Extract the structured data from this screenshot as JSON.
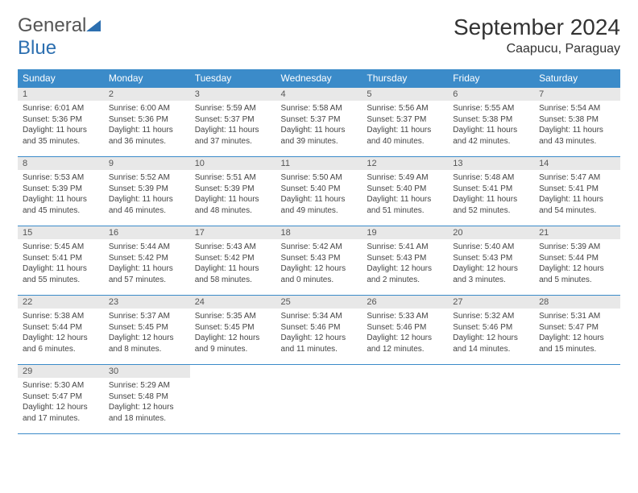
{
  "logo": {
    "word1": "General",
    "word2": "Blue"
  },
  "header": {
    "month_title": "September 2024",
    "location": "Caapucu, Paraguay"
  },
  "colors": {
    "accent": "#3b8bc9",
    "header_bg": "#3b8bc9",
    "daynum_bg": "#e8e8e8"
  },
  "weekdays": [
    "Sunday",
    "Monday",
    "Tuesday",
    "Wednesday",
    "Thursday",
    "Friday",
    "Saturday"
  ],
  "weeks": [
    [
      {
        "num": "1",
        "sunrise": "Sunrise: 6:01 AM",
        "sunset": "Sunset: 5:36 PM",
        "day1": "Daylight: 11 hours",
        "day2": "and 35 minutes."
      },
      {
        "num": "2",
        "sunrise": "Sunrise: 6:00 AM",
        "sunset": "Sunset: 5:36 PM",
        "day1": "Daylight: 11 hours",
        "day2": "and 36 minutes."
      },
      {
        "num": "3",
        "sunrise": "Sunrise: 5:59 AM",
        "sunset": "Sunset: 5:37 PM",
        "day1": "Daylight: 11 hours",
        "day2": "and 37 minutes."
      },
      {
        "num": "4",
        "sunrise": "Sunrise: 5:58 AM",
        "sunset": "Sunset: 5:37 PM",
        "day1": "Daylight: 11 hours",
        "day2": "and 39 minutes."
      },
      {
        "num": "5",
        "sunrise": "Sunrise: 5:56 AM",
        "sunset": "Sunset: 5:37 PM",
        "day1": "Daylight: 11 hours",
        "day2": "and 40 minutes."
      },
      {
        "num": "6",
        "sunrise": "Sunrise: 5:55 AM",
        "sunset": "Sunset: 5:38 PM",
        "day1": "Daylight: 11 hours",
        "day2": "and 42 minutes."
      },
      {
        "num": "7",
        "sunrise": "Sunrise: 5:54 AM",
        "sunset": "Sunset: 5:38 PM",
        "day1": "Daylight: 11 hours",
        "day2": "and 43 minutes."
      }
    ],
    [
      {
        "num": "8",
        "sunrise": "Sunrise: 5:53 AM",
        "sunset": "Sunset: 5:39 PM",
        "day1": "Daylight: 11 hours",
        "day2": "and 45 minutes."
      },
      {
        "num": "9",
        "sunrise": "Sunrise: 5:52 AM",
        "sunset": "Sunset: 5:39 PM",
        "day1": "Daylight: 11 hours",
        "day2": "and 46 minutes."
      },
      {
        "num": "10",
        "sunrise": "Sunrise: 5:51 AM",
        "sunset": "Sunset: 5:39 PM",
        "day1": "Daylight: 11 hours",
        "day2": "and 48 minutes."
      },
      {
        "num": "11",
        "sunrise": "Sunrise: 5:50 AM",
        "sunset": "Sunset: 5:40 PM",
        "day1": "Daylight: 11 hours",
        "day2": "and 49 minutes."
      },
      {
        "num": "12",
        "sunrise": "Sunrise: 5:49 AM",
        "sunset": "Sunset: 5:40 PM",
        "day1": "Daylight: 11 hours",
        "day2": "and 51 minutes."
      },
      {
        "num": "13",
        "sunrise": "Sunrise: 5:48 AM",
        "sunset": "Sunset: 5:41 PM",
        "day1": "Daylight: 11 hours",
        "day2": "and 52 minutes."
      },
      {
        "num": "14",
        "sunrise": "Sunrise: 5:47 AM",
        "sunset": "Sunset: 5:41 PM",
        "day1": "Daylight: 11 hours",
        "day2": "and 54 minutes."
      }
    ],
    [
      {
        "num": "15",
        "sunrise": "Sunrise: 5:45 AM",
        "sunset": "Sunset: 5:41 PM",
        "day1": "Daylight: 11 hours",
        "day2": "and 55 minutes."
      },
      {
        "num": "16",
        "sunrise": "Sunrise: 5:44 AM",
        "sunset": "Sunset: 5:42 PM",
        "day1": "Daylight: 11 hours",
        "day2": "and 57 minutes."
      },
      {
        "num": "17",
        "sunrise": "Sunrise: 5:43 AM",
        "sunset": "Sunset: 5:42 PM",
        "day1": "Daylight: 11 hours",
        "day2": "and 58 minutes."
      },
      {
        "num": "18",
        "sunrise": "Sunrise: 5:42 AM",
        "sunset": "Sunset: 5:43 PM",
        "day1": "Daylight: 12 hours",
        "day2": "and 0 minutes."
      },
      {
        "num": "19",
        "sunrise": "Sunrise: 5:41 AM",
        "sunset": "Sunset: 5:43 PM",
        "day1": "Daylight: 12 hours",
        "day2": "and 2 minutes."
      },
      {
        "num": "20",
        "sunrise": "Sunrise: 5:40 AM",
        "sunset": "Sunset: 5:43 PM",
        "day1": "Daylight: 12 hours",
        "day2": "and 3 minutes."
      },
      {
        "num": "21",
        "sunrise": "Sunrise: 5:39 AM",
        "sunset": "Sunset: 5:44 PM",
        "day1": "Daylight: 12 hours",
        "day2": "and 5 minutes."
      }
    ],
    [
      {
        "num": "22",
        "sunrise": "Sunrise: 5:38 AM",
        "sunset": "Sunset: 5:44 PM",
        "day1": "Daylight: 12 hours",
        "day2": "and 6 minutes."
      },
      {
        "num": "23",
        "sunrise": "Sunrise: 5:37 AM",
        "sunset": "Sunset: 5:45 PM",
        "day1": "Daylight: 12 hours",
        "day2": "and 8 minutes."
      },
      {
        "num": "24",
        "sunrise": "Sunrise: 5:35 AM",
        "sunset": "Sunset: 5:45 PM",
        "day1": "Daylight: 12 hours",
        "day2": "and 9 minutes."
      },
      {
        "num": "25",
        "sunrise": "Sunrise: 5:34 AM",
        "sunset": "Sunset: 5:46 PM",
        "day1": "Daylight: 12 hours",
        "day2": "and 11 minutes."
      },
      {
        "num": "26",
        "sunrise": "Sunrise: 5:33 AM",
        "sunset": "Sunset: 5:46 PM",
        "day1": "Daylight: 12 hours",
        "day2": "and 12 minutes."
      },
      {
        "num": "27",
        "sunrise": "Sunrise: 5:32 AM",
        "sunset": "Sunset: 5:46 PM",
        "day1": "Daylight: 12 hours",
        "day2": "and 14 minutes."
      },
      {
        "num": "28",
        "sunrise": "Sunrise: 5:31 AM",
        "sunset": "Sunset: 5:47 PM",
        "day1": "Daylight: 12 hours",
        "day2": "and 15 minutes."
      }
    ],
    [
      {
        "num": "29",
        "sunrise": "Sunrise: 5:30 AM",
        "sunset": "Sunset: 5:47 PM",
        "day1": "Daylight: 12 hours",
        "day2": "and 17 minutes."
      },
      {
        "num": "30",
        "sunrise": "Sunrise: 5:29 AM",
        "sunset": "Sunset: 5:48 PM",
        "day1": "Daylight: 12 hours",
        "day2": "and 18 minutes."
      },
      null,
      null,
      null,
      null,
      null
    ]
  ]
}
